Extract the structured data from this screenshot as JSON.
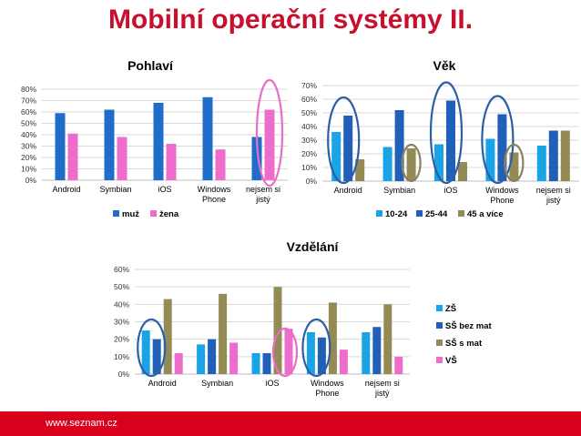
{
  "page_title": "Mobilní operační systémy II.",
  "footer": {
    "url": "www.seznam.cz"
  },
  "colors": {
    "title_red": "#c8102e",
    "footer_red": "#d9001b",
    "blue": "#1f6cc9",
    "light_blue": "#1aa3e6",
    "dark_blue": "#2160b8",
    "olive": "#948a54",
    "pink": "#ee6ccb",
    "highlight_pink": "#e86fc8",
    "highlight_blue": "#2a5fa8",
    "highlight_olive": "#8b8160"
  },
  "chart_data": [
    {
      "id": "pohlavi",
      "type": "bar",
      "title": "Pohlaví",
      "categories": [
        "Android",
        "Symbian",
        "iOS",
        "Windows Phone",
        "nejsem si jistý"
      ],
      "category_lines": [
        [
          "Android"
        ],
        [
          "Symbian"
        ],
        [
          "iOS"
        ],
        [
          "Windows",
          "Phone"
        ],
        [
          "nejsem si",
          "jistý"
        ]
      ],
      "series": [
        {
          "name": "muž",
          "color": "#1f6cc9",
          "values": [
            59,
            62,
            68,
            73,
            38
          ]
        },
        {
          "name": "žena",
          "color": "#ee6ccb",
          "values": [
            41,
            38,
            32,
            27,
            62
          ]
        }
      ],
      "ylim": [
        0,
        80
      ],
      "yticks": [
        "0%",
        "10%",
        "20%",
        "30%",
        "40%",
        "50%",
        "60%",
        "70%",
        "80%"
      ],
      "gridlines": true,
      "legend": "bottom",
      "highlights": [
        {
          "category": "nejsem si jistý",
          "color": "#e86fc8"
        }
      ]
    },
    {
      "id": "vek",
      "type": "bar",
      "title": "Věk",
      "categories": [
        "Android",
        "Symbian",
        "iOS",
        "Windows Phone",
        "nejsem si jistý"
      ],
      "category_lines": [
        [
          "Android"
        ],
        [
          "Symbian"
        ],
        [
          "iOS"
        ],
        [
          "Windows",
          "Phone"
        ],
        [
          "nejsem si",
          "jistý"
        ]
      ],
      "series": [
        {
          "name": "10-24",
          "color": "#1aa3e6",
          "values": [
            36,
            25,
            27,
            31,
            26
          ]
        },
        {
          "name": "25-44",
          "color": "#2160b8",
          "values": [
            48,
            52,
            59,
            49,
            37
          ]
        },
        {
          "name": "45 a více",
          "color": "#948a54",
          "values": [
            16,
            24,
            14,
            21,
            37
          ]
        }
      ],
      "ylim": [
        0,
        70
      ],
      "yticks": [
        "0%",
        "10%",
        "20%",
        "30%",
        "40%",
        "50%",
        "60%",
        "70%"
      ],
      "gridlines": true,
      "legend": "bottom",
      "highlights": [
        {
          "category": "Android",
          "color": "#2a5fa8"
        },
        {
          "category": "Symbian",
          "color": "#8b8160"
        },
        {
          "category": "iOS",
          "color": "#2a5fa8"
        },
        {
          "category": "Windows Phone",
          "color": "#2a5fa8"
        },
        {
          "category": "Windows Phone",
          "color": "#8b8160"
        }
      ]
    },
    {
      "id": "vzdelani",
      "type": "bar",
      "title": "Vzdělání",
      "categories": [
        "Android",
        "Symbian",
        "iOS",
        "Windows Phone",
        "nejsem si jistý"
      ],
      "category_lines": [
        [
          "Android"
        ],
        [
          "Symbian"
        ],
        [
          "iOS"
        ],
        [
          "Windows",
          "Phone"
        ],
        [
          "nejsem si",
          "jistý"
        ]
      ],
      "series": [
        {
          "name": "ZŠ",
          "color": "#1aa3e6",
          "values": [
            25,
            17,
            12,
            24,
            24
          ]
        },
        {
          "name": "SŠ bez mat",
          "color": "#2160b8",
          "values": [
            20,
            20,
            12,
            21,
            27
          ]
        },
        {
          "name": "SŠ s mat",
          "color": "#948a54",
          "values": [
            43,
            46,
            50,
            41,
            40
          ]
        },
        {
          "name": "VŠ",
          "color": "#ee6ccb",
          "values": [
            12,
            18,
            26,
            14,
            10
          ]
        }
      ],
      "ylim": [
        0,
        60
      ],
      "yticks": [
        "0%",
        "10%",
        "20%",
        "30%",
        "40%",
        "50%",
        "60%"
      ],
      "gridlines": true,
      "legend": "right",
      "highlights": [
        {
          "category": "Android",
          "color": "#2a5fa8"
        },
        {
          "category": "iOS",
          "color": "#e86fc8"
        },
        {
          "category": "Windows Phone",
          "color": "#2a5fa8"
        }
      ]
    }
  ]
}
